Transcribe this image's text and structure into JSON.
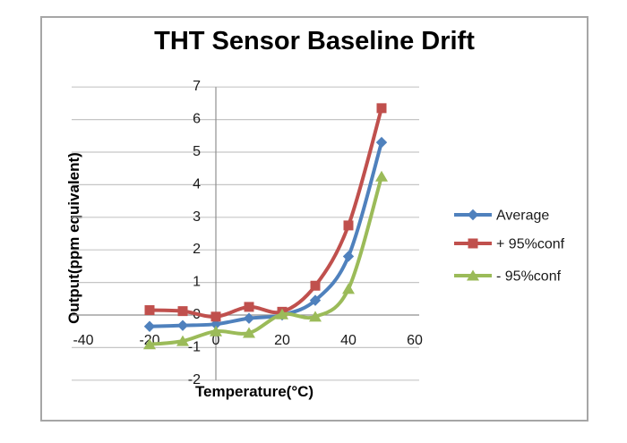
{
  "page": {
    "background": "#ffffff",
    "frame_border_color": "#a6a6a6"
  },
  "chart_data": {
    "type": "line",
    "title": "THT Sensor Baseline Drift",
    "xlabel": "Temperature(°C)",
    "ylabel": "Output(ppm equivalent)",
    "x": [
      -20,
      -10,
      0,
      10,
      20,
      30,
      40,
      50
    ],
    "series": [
      {
        "name": "Average",
        "color": "#4F81BD",
        "marker": "diamond",
        "values": [
          -0.35,
          -0.32,
          -0.28,
          -0.1,
          0.0,
          0.45,
          1.8,
          5.3
        ]
      },
      {
        "name": "+ 95%conf",
        "color": "#C0504D",
        "marker": "square",
        "values": [
          0.15,
          0.12,
          -0.05,
          0.25,
          0.1,
          0.9,
          2.75,
          6.35
        ]
      },
      {
        "name": "- 95%conf",
        "color": "#9BBB59",
        "marker": "triangle",
        "values": [
          -0.9,
          -0.8,
          -0.5,
          -0.55,
          0.02,
          -0.05,
          0.8,
          4.25
        ]
      }
    ],
    "x_ticks": [
      -40,
      -20,
      0,
      20,
      40,
      60
    ],
    "y_ticks": [
      7,
      6,
      5,
      4,
      3,
      2,
      1,
      0,
      -1,
      -2
    ],
    "xlim": [
      -44,
      62
    ],
    "ylim": [
      -2,
      7
    ],
    "grid": "horizontal",
    "smoothed_lines": true,
    "legend_position": "right",
    "gridline_color": "#c6c6c6",
    "axis_line_color": "#8f8f8f",
    "tick_text_color": "#1a1a1a"
  }
}
